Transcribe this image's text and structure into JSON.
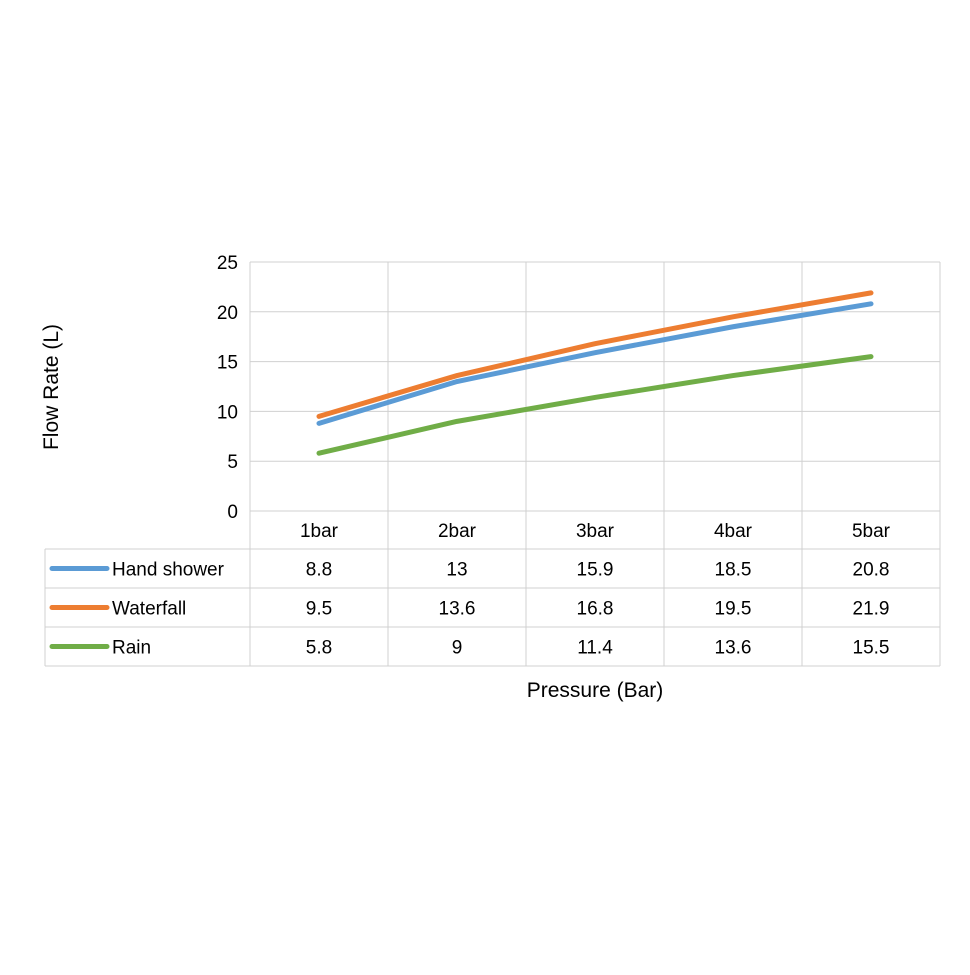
{
  "chart_data": {
    "type": "line",
    "title": "",
    "xlabel": "Pressure (Bar)",
    "ylabel": "Flow Rate (L)",
    "categories": [
      "1bar",
      "2bar",
      "3bar",
      "4bar",
      "5bar"
    ],
    "ylim": [
      0,
      25
    ],
    "yticks": [
      0,
      5,
      10,
      15,
      20,
      25
    ],
    "grid": true,
    "legend": "data-table",
    "series": [
      {
        "name": "Hand shower",
        "color": "#5B9BD5",
        "values": [
          8.8,
          13,
          15.9,
          18.5,
          20.8
        ]
      },
      {
        "name": "Waterfall",
        "color": "#ED7D31",
        "values": [
          9.5,
          13.6,
          16.8,
          19.5,
          21.9
        ]
      },
      {
        "name": "Rain",
        "color": "#70AD47",
        "values": [
          5.8,
          9,
          11.4,
          13.6,
          15.5
        ]
      }
    ]
  }
}
